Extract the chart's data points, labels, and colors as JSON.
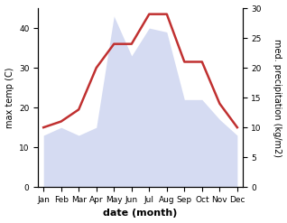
{
  "months": [
    "Jan",
    "Feb",
    "Mar",
    "Apr",
    "May",
    "Jun",
    "Jul",
    "Aug",
    "Sep",
    "Oct",
    "Nov",
    "Dec"
  ],
  "temperature": [
    13,
    15,
    13,
    15,
    43,
    33,
    40,
    39,
    22,
    22,
    17,
    13
  ],
  "precipitation": [
    10,
    11,
    13,
    20,
    24,
    24,
    29,
    29,
    21,
    21,
    14,
    10
  ],
  "temp_fill_color": "#c8d0ee",
  "temp_fill_alpha": 0.75,
  "precip_color": "#c03030",
  "xlabel": "date (month)",
  "ylabel_left": "max temp (C)",
  "ylabel_right": "med. precipitation (kg/m2)",
  "ylim_left": [
    0,
    45
  ],
  "ylim_right": [
    0,
    30
  ],
  "yticks_left": [
    0,
    10,
    20,
    30,
    40
  ],
  "yticks_right": [
    0,
    5,
    10,
    15,
    20,
    25,
    30
  ],
  "tick_fontsize": 6.5,
  "label_fontsize": 7,
  "xlabel_fontsize": 8,
  "background_color": "#ffffff",
  "precip_linewidth": 1.8
}
